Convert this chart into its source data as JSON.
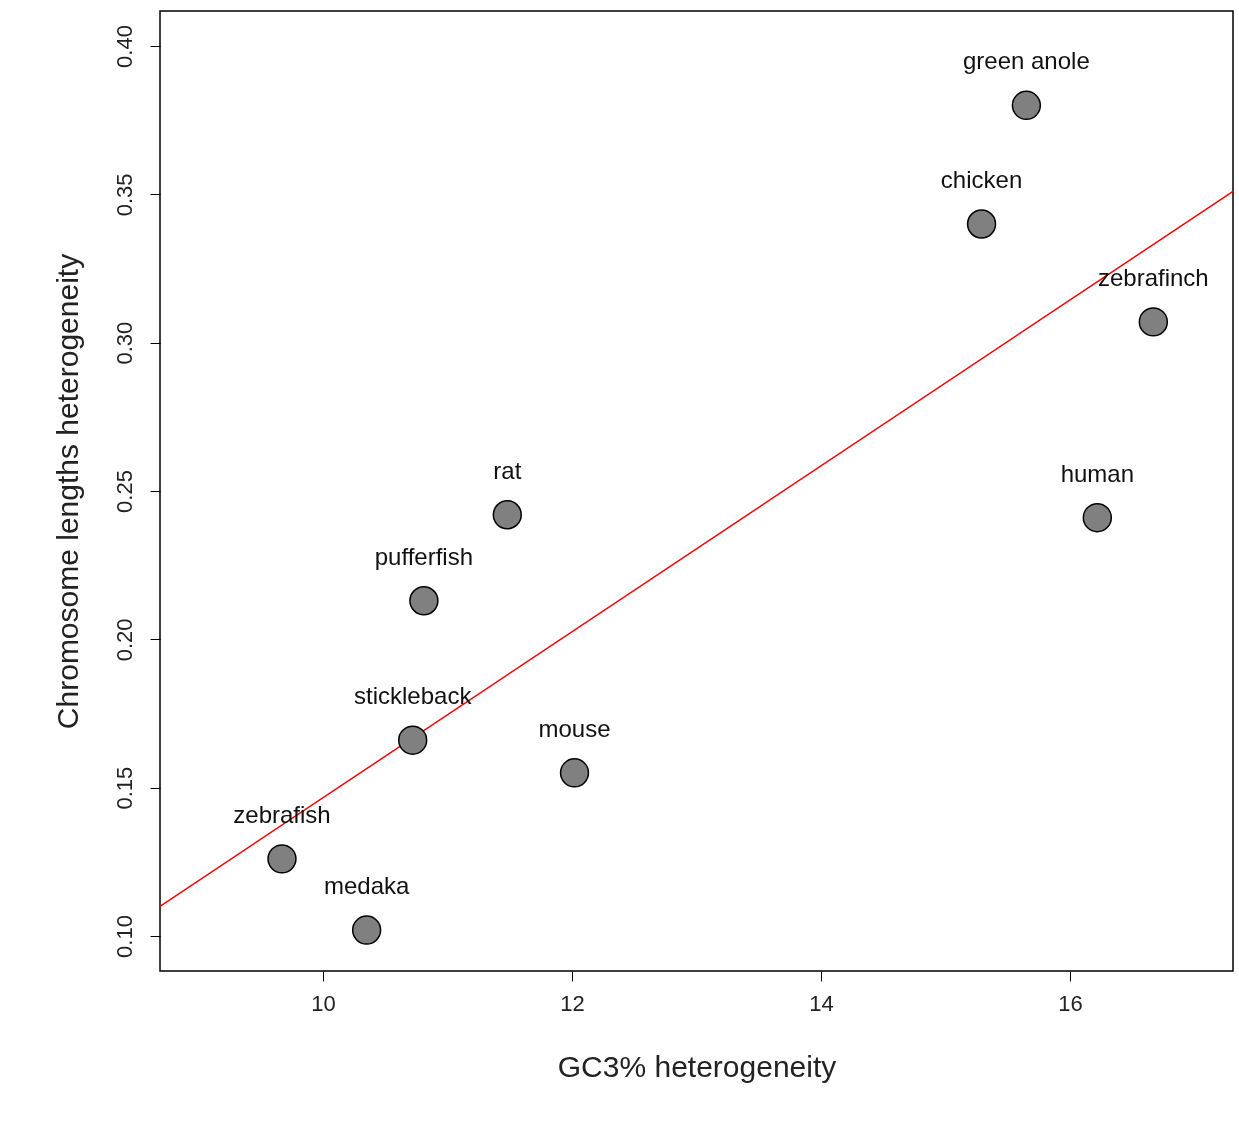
{
  "chart_data": {
    "type": "scatter",
    "xlabel": "GC3% heterogeneity",
    "ylabel": "Chromosome lengths heterogeneity",
    "xlim": [
      8.69,
      17.31
    ],
    "ylim": [
      0.0882,
      0.4118
    ],
    "xticks": [
      10,
      12,
      14,
      16
    ],
    "yticks": [
      {
        "value": 0.1,
        "label": "0.10"
      },
      {
        "value": 0.15,
        "label": "0.15"
      },
      {
        "value": 0.2,
        "label": "0.20"
      },
      {
        "value": 0.25,
        "label": "0.25"
      },
      {
        "value": 0.3,
        "label": "0.30"
      },
      {
        "value": 0.35,
        "label": "0.35"
      },
      {
        "value": 0.4,
        "label": "0.40"
      }
    ],
    "grid": false,
    "series": [
      {
        "color": "#808080",
        "marker": "circle",
        "x": [
          15.65,
          15.29,
          16.67,
          16.22,
          11.48,
          10.81,
          10.72,
          12.02,
          9.67,
          10.35
        ],
        "values": [
          0.38,
          0.34,
          0.307,
          0.241,
          0.242,
          0.213,
          0.166,
          0.155,
          0.126,
          0.102
        ]
      },
      {
        "type": "line",
        "color": "#ff0000",
        "line_style": "solid",
        "x": [
          8.69,
          17.31
        ],
        "values": [
          0.11,
          0.351
        ]
      }
    ],
    "annotations": [
      {
        "text": "green anole",
        "x": 15.65,
        "y": 0.38
      },
      {
        "text": "chicken",
        "x": 15.29,
        "y": 0.34
      },
      {
        "text": "zebrafinch",
        "x": 16.67,
        "y": 0.307
      },
      {
        "text": "human",
        "x": 16.22,
        "y": 0.241
      },
      {
        "text": "rat",
        "x": 11.48,
        "y": 0.242
      },
      {
        "text": "pufferfish",
        "x": 10.81,
        "y": 0.213
      },
      {
        "text": "stickleback",
        "x": 10.72,
        "y": 0.166
      },
      {
        "text": "mouse",
        "x": 12.02,
        "y": 0.155
      },
      {
        "text": "zebrafish",
        "x": 9.67,
        "y": 0.126
      },
      {
        "text": "medaka",
        "x": 10.35,
        "y": 0.102
      }
    ]
  }
}
